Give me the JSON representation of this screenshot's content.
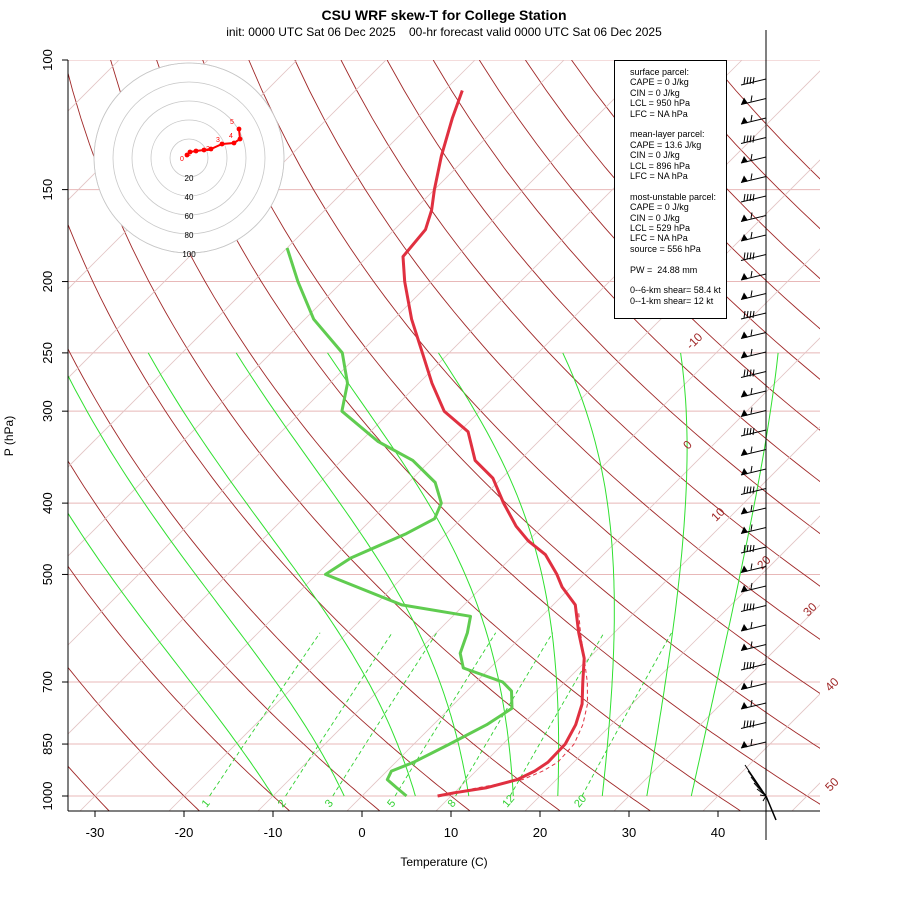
{
  "title": "CSU WRF skew-T for College Station",
  "subtitle": "init: 0000 UTC Sat 06 Dec 2025    00-hr forecast valid 0000 UTC Sat 06 Dec 2025",
  "chart_data": {
    "type": "line",
    "title": "CSU WRF skew-T for College Station",
    "xlabel": "Temperature (C)",
    "ylabel": "P (hPa)",
    "xticks": [
      -30,
      -20,
      -10,
      0,
      10,
      20,
      30,
      40
    ],
    "yticks": [
      100,
      150,
      200,
      250,
      300,
      400,
      500,
      700,
      850,
      1000
    ],
    "xlim": [
      -33,
      44
    ],
    "ylim": [
      1050,
      100
    ],
    "scale": "skew-T log-p",
    "series": [
      {
        "name": "temperature",
        "color": "#e03040",
        "points": [
          [
            1000,
            8.5
          ],
          [
            990,
            10.0
          ],
          [
            975,
            13.0
          ],
          [
            950,
            15.6
          ],
          [
            925,
            16.6
          ],
          [
            900,
            17.1
          ],
          [
            850,
            17.0
          ],
          [
            800,
            16.0
          ],
          [
            750,
            14.4
          ],
          [
            700,
            12.0
          ],
          [
            650,
            9.5
          ],
          [
            600,
            6.0
          ],
          [
            550,
            2.5
          ],
          [
            520,
            -1.0
          ],
          [
            500,
            -3.0
          ],
          [
            470,
            -6.5
          ],
          [
            450,
            -10.0
          ],
          [
            430,
            -13.0
          ],
          [
            400,
            -17.0
          ],
          [
            370,
            -21.0
          ],
          [
            350,
            -25.0
          ],
          [
            320,
            -29.0
          ],
          [
            300,
            -34.0
          ],
          [
            275,
            -38.5
          ],
          [
            250,
            -43.0
          ],
          [
            225,
            -48.0
          ],
          [
            200,
            -53.0
          ],
          [
            185,
            -56.0
          ],
          [
            170,
            -56.5
          ],
          [
            160,
            -58.0
          ],
          [
            150,
            -60.0
          ],
          [
            135,
            -63.0
          ],
          [
            120,
            -66.0
          ],
          [
            110,
            -68.0
          ]
        ]
      },
      {
        "name": "dewpoint",
        "color": "#60cc50",
        "points": [
          [
            1000,
            5.0
          ],
          [
            975,
            3.0
          ],
          [
            950,
            1.0
          ],
          [
            925,
            0.5
          ],
          [
            900,
            2.0
          ],
          [
            850,
            4.0
          ],
          [
            800,
            6.0
          ],
          [
            760,
            7.0
          ],
          [
            720,
            5.0
          ],
          [
            700,
            3.0
          ],
          [
            670,
            -3.0
          ],
          [
            640,
            -5.0
          ],
          [
            600,
            -6.5
          ],
          [
            570,
            -8.0
          ],
          [
            550,
            -17.0
          ],
          [
            500,
            -29.0
          ],
          [
            475,
            -28.0
          ],
          [
            440,
            -24.5
          ],
          [
            420,
            -23.0
          ],
          [
            400,
            -24.0
          ],
          [
            375,
            -27.0
          ],
          [
            350,
            -32.0
          ],
          [
            330,
            -38.0
          ],
          [
            300,
            -45.5
          ],
          [
            275,
            -48.0
          ],
          [
            250,
            -52.0
          ],
          [
            225,
            -59.0
          ],
          [
            200,
            -65.0
          ],
          [
            180,
            -70.0
          ]
        ]
      },
      {
        "name": "parcel",
        "color": "#e03040",
        "style": "dashed",
        "points": [
          [
            1000,
            8.5
          ],
          [
            975,
            12.0
          ],
          [
            950,
            16.2
          ],
          [
            925,
            17.5
          ],
          [
            900,
            18.2
          ],
          [
            850,
            18.0
          ],
          [
            800,
            16.8
          ],
          [
            750,
            15.0
          ],
          [
            700,
            12.5
          ],
          [
            650,
            9.5
          ],
          [
            600,
            6.2
          ],
          [
            560,
            3.5
          ]
        ]
      }
    ],
    "isotherm_labels": [
      "-10",
      "0",
      "10",
      "20",
      "30",
      "40",
      "50"
    ],
    "mixing_ratio_labels": [
      "1",
      "2",
      "3",
      "5",
      "8",
      "12",
      "20"
    ],
    "hodograph": {
      "ring_labels": [
        "20",
        "40",
        "60",
        "80",
        "100"
      ],
      "height_labels": [
        "0",
        "1",
        "2",
        "3",
        "4",
        "5"
      ]
    },
    "wind_barbs": "right-side profile, light winds near surface increasing aloft"
  },
  "indices": {
    "surface_parcel": {
      "header": "surface parcel:",
      "cape": "CAPE = 0 J/kg",
      "cin": "CIN = 0 J/kg",
      "lcl": "LCL = 950 hPa",
      "lfc": "LFC = NA hPa"
    },
    "mean_layer_parcel": {
      "header": "mean-layer parcel:",
      "cape": "CAPE = 13.6 J/kg",
      "cin": "CIN = 0 J/kg",
      "lcl": "LCL = 896 hPa",
      "lfc": "LFC = NA hPa"
    },
    "most_unstable_parcel": {
      "header": "most-unstable parcel:",
      "cape": "CAPE = 0 J/kg",
      "cin": "CIN = 0 J/kg",
      "lcl": "LCL = 529 hPa",
      "lfc": "LFC = NA hPa",
      "source": "source = 556 hPa"
    },
    "pw": "PW =  24.88 mm",
    "shear_6km": "0--6-km shear= 58.4 kt",
    "shear_1km": "0--1-km shear= 12 kt"
  }
}
